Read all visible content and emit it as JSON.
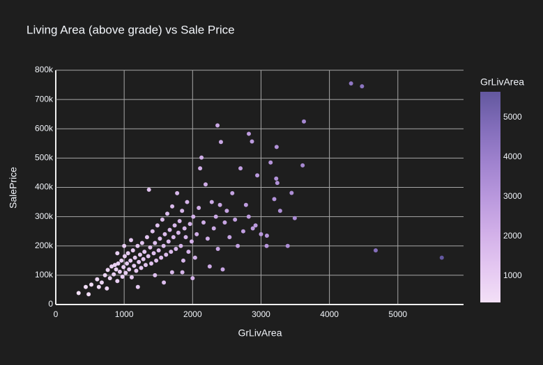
{
  "chart_data": {
    "type": "scatter",
    "title": "Living Area (above grade) vs Sale Price",
    "x_label": "GrLivArea",
    "y_label": "SalePrice",
    "colorbar": {
      "title": "GrLivArea",
      "clim": [
        334,
        5642
      ],
      "ticks": [
        1000,
        2000,
        3000,
        4000,
        5000
      ],
      "colorscale": [
        "#f3e0f7",
        "#e4c7f1",
        "#d1afe8",
        "#b998dd",
        "#9f82ce",
        "#826dba",
        "#63589f"
      ]
    },
    "xlim": [
      0,
      5960
    ],
    "ylim": [
      0,
      800000
    ],
    "xticks": [
      0,
      1000,
      2000,
      3000,
      4000,
      5000
    ],
    "yticks": [
      0,
      {
        "value": 100000,
        "label": "100k"
      },
      {
        "value": 200000,
        "label": "200k"
      },
      {
        "value": 300000,
        "label": "300k"
      },
      {
        "value": 400000,
        "label": "400k"
      },
      {
        "value": 500000,
        "label": "500k"
      },
      {
        "value": 600000,
        "label": "600k"
      },
      {
        "value": 700000,
        "label": "700k"
      },
      {
        "value": 800000,
        "label": "800k"
      }
    ],
    "grid": true,
    "x": [
      4316,
      4476,
      3627,
      2364,
      2822,
      2868,
      2414,
      3228,
      3608,
      2130,
      3140,
      3447,
      3493,
      4676,
      5642,
      3082,
      3086,
      3194,
      3222,
      3238,
      3279,
      3390,
      2945,
      334,
      438,
      480,
      520,
      605,
      630,
      672,
      720,
      747,
      760,
      792,
      816,
      848,
      864,
      882,
      900,
      912,
      936,
      960,
      975,
      990,
      1008,
      1022,
      1040,
      1056,
      1072,
      1092,
      1110,
      1128,
      1144,
      1158,
      1176,
      1196,
      1214,
      1232,
      1248,
      1262,
      1280,
      1296,
      1314,
      1334,
      1352,
      1362,
      1380,
      1396,
      1414,
      1432,
      1450,
      1468,
      1486,
      1504,
      1522,
      1540,
      1558,
      1576,
      1594,
      1612,
      1630,
      1648,
      1666,
      1684,
      1702,
      1720,
      1738,
      1756,
      1774,
      1792,
      1810,
      1828,
      1846,
      1864,
      1882,
      1900,
      1920,
      1940,
      1962,
      1986,
      2010,
      2036,
      2060,
      2090,
      2110,
      2160,
      2190,
      2220,
      2250,
      2280,
      2310,
      2340,
      2370,
      2400,
      2440,
      2470,
      2500,
      2540,
      2580,
      2620,
      2660,
      2700,
      2740,
      2780,
      2820,
      2880,
      2920,
      3000,
      1580,
      1200,
      1450,
      1700,
      1000,
      1100,
      900,
      2000,
      1850
    ],
    "y": [
      755000,
      745000,
      625000,
      611657,
      582933,
      556581,
      555000,
      538000,
      475000,
      501837,
      485000,
      381000,
      295000,
      184750,
      160000,
      200000,
      235000,
      360000,
      430000,
      415000,
      320000,
      200000,
      441000,
      39300,
      60000,
      35000,
      68000,
      86000,
      60000,
      75000,
      100000,
      55000,
      118000,
      90000,
      130000,
      103000,
      135000,
      120000,
      80000,
      140000,
      112000,
      150000,
      95000,
      128000,
      165000,
      108000,
      140000,
      175000,
      120000,
      150000,
      93000,
      185000,
      132000,
      160000,
      115000,
      200000,
      145000,
      170000,
      125000,
      210000,
      155000,
      180000,
      135000,
      230000,
      165000,
      392000,
      195000,
      140000,
      250000,
      175000,
      210000,
      150000,
      270000,
      185000,
      225000,
      160000,
      290000,
      200000,
      240000,
      170000,
      310000,
      215000,
      255000,
      180000,
      335000,
      230000,
      270000,
      190000,
      380000,
      245000,
      285000,
      200000,
      320000,
      150000,
      260000,
      230000,
      350000,
      180000,
      275000,
      215000,
      300000,
      160000,
      240000,
      330000,
      465000,
      280000,
      410000,
      225000,
      130000,
      350000,
      260000,
      300000,
      190000,
      340000,
      120000,
      280000,
      320000,
      230000,
      380000,
      290000,
      200000,
      465000,
      250000,
      340000,
      300000,
      260000,
      270000,
      240000,
      75000,
      60000,
      100000,
      110000,
      200000,
      220000,
      175000,
      90000,
      110000
    ]
  }
}
